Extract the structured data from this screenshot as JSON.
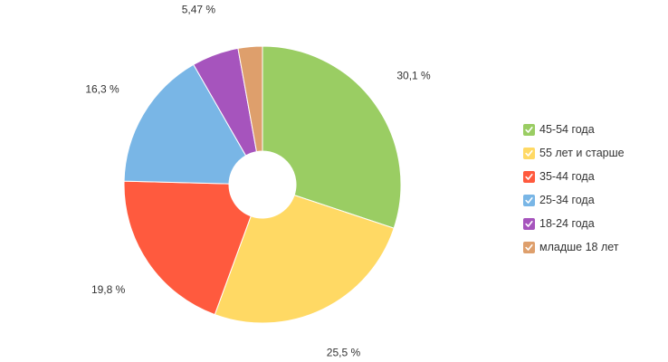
{
  "chart_data": {
    "type": "pie",
    "donut": true,
    "legend_position": "right",
    "slices": [
      {
        "label": "45-54 года",
        "value": 30.1,
        "value_label": "30,1 %",
        "color": "#9ACD63"
      },
      {
        "label": "55 лет и старше",
        "value": 25.5,
        "value_label": "25,5 %",
        "color": "#FFD964"
      },
      {
        "label": "35-44 года",
        "value": 19.8,
        "value_label": "19,8 %",
        "color": "#FF5A3E"
      },
      {
        "label": "25-34 года",
        "value": 16.3,
        "value_label": "16,3 %",
        "color": "#79B6E6"
      },
      {
        "label": "18-24 года",
        "value": 5.47,
        "value_label": "5,47 %",
        "color": "#A654BD"
      },
      {
        "label": "младше 18 лет",
        "value": 2.83,
        "value_label": "",
        "color": "#DE9F6C"
      }
    ]
  },
  "legend": {
    "check_icon": "check-icon"
  }
}
